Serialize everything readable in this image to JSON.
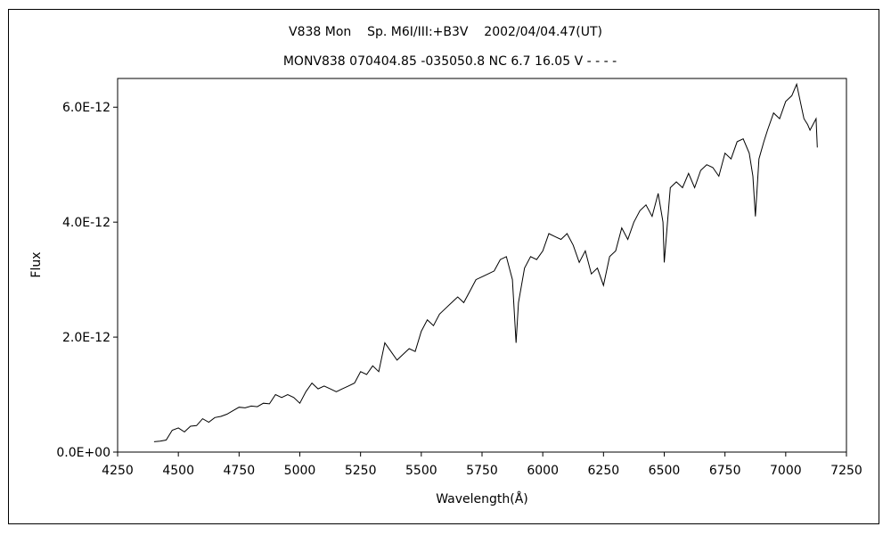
{
  "chart_data": {
    "type": "line",
    "title": "V838 Mon    Sp. M6I/III:+B3V    2002/04/04.47(UT)",
    "subtitle": "MONV838 070404.85 -035050.8 NC 6.7 16.05 V - - - -",
    "xlabel": "Wavelength(Å)",
    "ylabel": "Flux",
    "xlim": [
      4250,
      7250
    ],
    "ylim": [
      0,
      6.5e-12
    ],
    "x_ticks": [
      4250,
      4500,
      4750,
      5000,
      5250,
      5500,
      5750,
      6000,
      6250,
      6500,
      6750,
      7000,
      7250
    ],
    "x_tick_labels": [
      "4250",
      "4500",
      "4750",
      "5000",
      "5250",
      "5500",
      "5750",
      "6000",
      "6250",
      "6500",
      "6750",
      "7000",
      "7250"
    ],
    "y_ticks": [
      0,
      2e-12,
      4e-12,
      6e-12
    ],
    "y_tick_labels": [
      "0.0E+00",
      "2.0E-12",
      "4.0E-12",
      "6.0E-12"
    ],
    "grid": false,
    "legend": "none",
    "color": "#000000",
    "series": [
      {
        "x": [
          4400,
          4425,
          4450,
          4475,
          4500,
          4525,
          4550,
          4575,
          4600,
          4625,
          4650,
          4675,
          4700,
          4725,
          4750,
          4775,
          4800,
          4825,
          4850,
          4875,
          4900,
          4925,
          4950,
          4975,
          5000,
          5025,
          5050,
          5075,
          5100,
          5125,
          5150,
          5175,
          5200,
          5225,
          5250,
          5275,
          5300,
          5325,
          5350,
          5375,
          5400,
          5425,
          5450,
          5475,
          5500,
          5525,
          5550,
          5575,
          5600,
          5625,
          5650,
          5675,
          5700,
          5725,
          5750,
          5775,
          5800,
          5825,
          5850,
          5875,
          5890,
          5900,
          5925,
          5950,
          5975,
          6000,
          6025,
          6050,
          6075,
          6100,
          6125,
          6150,
          6175,
          6200,
          6225,
          6250,
          6275,
          6300,
          6325,
          6350,
          6375,
          6400,
          6425,
          6450,
          6475,
          6495,
          6500,
          6525,
          6550,
          6575,
          6600,
          6625,
          6650,
          6675,
          6700,
          6725,
          6750,
          6775,
          6800,
          6825,
          6850,
          6865,
          6875,
          6890,
          6910,
          6925,
          6950,
          6975,
          7000,
          7025,
          7045,
          7060,
          7075,
          7090,
          7100,
          7125,
          7130
        ],
        "y": [
          1.8e-13,
          1.9e-13,
          2.1e-13,
          3.8e-13,
          4.2e-13,
          3.5e-13,
          4.5e-13,
          4.6e-13,
          5.8e-13,
          5.2e-13,
          6e-13,
          6.2e-13,
          6.6e-13,
          7.2e-13,
          7.8e-13,
          7.7e-13,
          8e-13,
          7.9e-13,
          8.5e-13,
          8.4e-13,
          1e-12,
          9.5e-13,
          1e-12,
          9.5e-13,
          8.5e-13,
          1.05e-12,
          1.2e-12,
          1.1e-12,
          1.15e-12,
          1.1e-12,
          1.05e-12,
          1.1e-12,
          1.15e-12,
          1.2e-12,
          1.4e-12,
          1.35e-12,
          1.5e-12,
          1.4e-12,
          1.9e-12,
          1.75e-12,
          1.6e-12,
          1.7e-12,
          1.8e-12,
          1.75e-12,
          2.1e-12,
          2.3e-12,
          2.2e-12,
          2.4e-12,
          2.5e-12,
          2.6e-12,
          2.7e-12,
          2.6e-12,
          2.8e-12,
          3e-12,
          3.05e-12,
          3.1e-12,
          3.15e-12,
          3.35e-12,
          3.4e-12,
          3e-12,
          1.9e-12,
          2.6e-12,
          3.2e-12,
          3.4e-12,
          3.35e-12,
          3.5e-12,
          3.8e-12,
          3.75e-12,
          3.7e-12,
          3.8e-12,
          3.6e-12,
          3.3e-12,
          3.5e-12,
          3.1e-12,
          3.2e-12,
          2.9e-12,
          3.4e-12,
          3.5e-12,
          3.9e-12,
          3.7e-12,
          4e-12,
          4.2e-12,
          4.3e-12,
          4.1e-12,
          4.5e-12,
          4e-12,
          3.3e-12,
          4.6e-12,
          4.7e-12,
          4.6e-12,
          4.85e-12,
          4.6e-12,
          4.9e-12,
          5e-12,
          4.95e-12,
          4.8e-12,
          5.2e-12,
          5.1e-12,
          5.4e-12,
          5.45e-12,
          5.2e-12,
          4.8e-12,
          4.1e-12,
          5.1e-12,
          5.4e-12,
          5.6e-12,
          5.9e-12,
          5.8e-12,
          6.1e-12,
          6.2e-12,
          6.4e-12,
          6.1e-12,
          5.8e-12,
          5.7e-12,
          5.6e-12,
          5.8e-12,
          5.3e-12
        ]
      }
    ]
  }
}
